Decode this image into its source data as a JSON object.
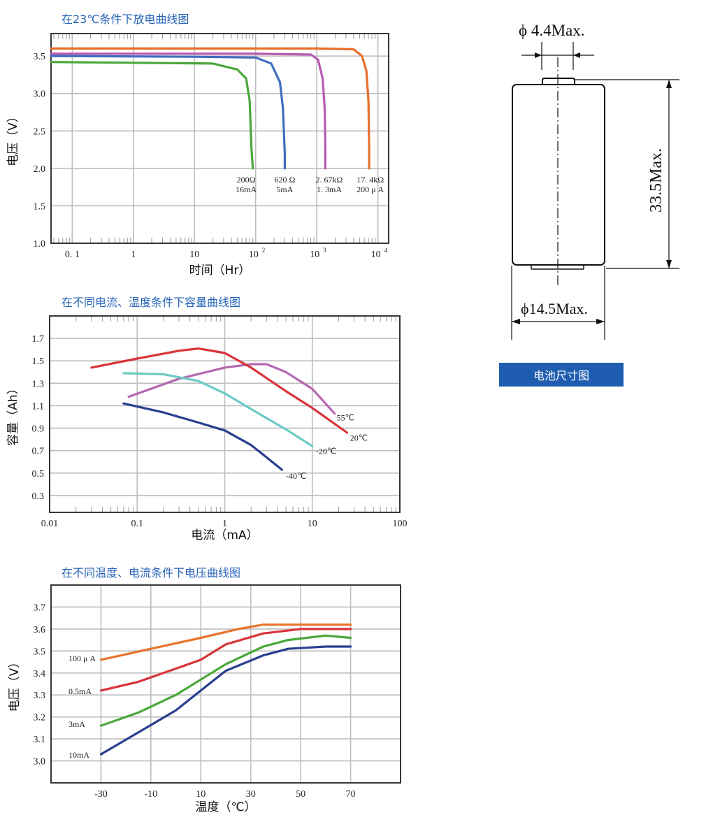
{
  "charts": {
    "c1": {
      "title": "在23℃条件下放电曲线图"
    },
    "c2": {
      "title": "在不同电流、温度条件下容量曲线图"
    },
    "c3": {
      "title": "在不同温度、电流条件下电压曲线图"
    }
  },
  "dimension": {
    "caption": "电池尺寸图",
    "d_top": "ϕ 4.4Max.",
    "height": "33.5Max.",
    "d_body": "ϕ14.5Max."
  },
  "chart_data": [
    {
      "type": "line",
      "title": "在23℃条件下放电曲线图",
      "xlabel": "时间（Hr）",
      "ylabel": "电压（V）",
      "xscale": "log",
      "xlim": [
        0.045,
        15000
      ],
      "ylim": [
        1.0,
        3.8
      ],
      "yticks": [
        "1.0",
        "1.5",
        "2.0",
        "2.5",
        "3.0",
        "3.5"
      ],
      "xticks": [
        {
          "label": "0. 1",
          "v": 0.1,
          "sup": ""
        },
        {
          "label": "1",
          "v": 1,
          "sup": ""
        },
        {
          "label": "10",
          "v": 10,
          "sup": ""
        },
        {
          "label": "10",
          "v": 100,
          "sup": "2"
        },
        {
          "label": "10",
          "v": 1000,
          "sup": "3"
        },
        {
          "label": "10",
          "v": 10000,
          "sup": "4"
        }
      ],
      "series": [
        {
          "label1": "200Ω",
          "label2": "16mA",
          "color": "#4aa83a",
          "labelX": 70,
          "x": [
            0.045,
            1,
            20,
            50,
            70,
            80,
            85,
            90,
            90
          ],
          "y": [
            3.42,
            3.41,
            3.4,
            3.32,
            3.2,
            2.9,
            2.3,
            2.0,
            2.0
          ]
        },
        {
          "label1": "620 Ω",
          "label2": "5mA",
          "color": "#3f6ebf",
          "labelX": 300,
          "x": [
            0.045,
            10,
            100,
            180,
            250,
            280,
            300,
            300
          ],
          "y": [
            3.5,
            3.49,
            3.48,
            3.4,
            3.15,
            2.8,
            2.2,
            2.0
          ]
        },
        {
          "label1": "2. 67kΩ",
          "label2": "1. 3mA",
          "color": "#b85ab0",
          "labelX": 1600,
          "x": [
            0.045,
            100,
            800,
            1050,
            1250,
            1350,
            1380,
            1380
          ],
          "y": [
            3.53,
            3.53,
            3.52,
            3.45,
            3.2,
            2.8,
            2.3,
            2.0
          ]
        },
        {
          "label1": "17. 4kΩ",
          "label2": "200 μ A",
          "color": "#e8702a",
          "labelX": 7500,
          "x": [
            0.045,
            1000,
            4000,
            5500,
            6500,
            7000,
            7200,
            7200
          ],
          "y": [
            3.6,
            3.6,
            3.59,
            3.5,
            3.3,
            2.9,
            2.3,
            2.0
          ]
        }
      ]
    },
    {
      "type": "line",
      "title": "在不同电流、温度条件下容量曲线图",
      "xlabel": "电流（mA）",
      "ylabel": "容量（Ah）",
      "xscale": "log",
      "xlim": [
        0.01,
        100
      ],
      "ylim": [
        0.15,
        1.9
      ],
      "yticks": [
        "0.3",
        "0.5",
        "0.7",
        "0.9",
        "1.1",
        "1.3",
        "1.5",
        "1.7"
      ],
      "xticks": [
        {
          "label": "0.01",
          "v": 0.01,
          "sup": ""
        },
        {
          "label": "0.1",
          "v": 0.1,
          "sup": ""
        },
        {
          "label": "1",
          "v": 1,
          "sup": ""
        },
        {
          "label": "10",
          "v": 10,
          "sup": ""
        },
        {
          "label": "100",
          "v": 100,
          "sup": ""
        }
      ],
      "series": [
        {
          "label1": "55℃",
          "label2": "",
          "color": "#b468b0",
          "lx": 19,
          "ly": 1.0,
          "x": [
            0.08,
            0.3,
            1,
            2,
            3,
            5,
            10,
            18
          ],
          "y": [
            1.18,
            1.34,
            1.44,
            1.47,
            1.47,
            1.4,
            1.25,
            1.03
          ]
        },
        {
          "label1": "20℃",
          "label2": "",
          "color": "#d9343a",
          "lx": 27,
          "ly": 0.82,
          "x": [
            0.03,
            0.1,
            0.3,
            0.5,
            1,
            2,
            5,
            10,
            25
          ],
          "y": [
            1.44,
            1.52,
            1.59,
            1.61,
            1.57,
            1.44,
            1.23,
            1.08,
            0.86
          ]
        },
        {
          "label1": "-20℃",
          "label2": "",
          "color": "#6ccac4",
          "lx": 11,
          "ly": 0.7,
          "x": [
            0.07,
            0.2,
            0.5,
            1,
            2,
            5,
            10
          ],
          "y": [
            1.39,
            1.38,
            1.32,
            1.21,
            1.07,
            0.89,
            0.74
          ]
        },
        {
          "label1": "-40℃",
          "label2": "",
          "color": "#2a3f8f",
          "lx": 5,
          "ly": 0.48,
          "x": [
            0.07,
            0.2,
            0.5,
            1,
            2,
            3,
            4.5
          ],
          "y": [
            1.12,
            1.04,
            0.95,
            0.88,
            0.75,
            0.64,
            0.53
          ]
        }
      ]
    },
    {
      "type": "line",
      "title": "在不同温度、电流条件下电压曲线图",
      "xlabel": "温度（℃）",
      "ylabel": "电压（V）",
      "xscale": "linear",
      "xlim": [
        -50,
        90
      ],
      "ylim": [
        2.9,
        3.8
      ],
      "yticks": [
        "3.0",
        "3.1",
        "3.2",
        "3.3",
        "3.4",
        "3.5",
        "3.6",
        "3.7"
      ],
      "xticks": [
        {
          "label": "-30",
          "v": -30,
          "sup": ""
        },
        {
          "label": "-10",
          "v": -10,
          "sup": ""
        },
        {
          "label": "10",
          "v": 10,
          "sup": ""
        },
        {
          "label": "30",
          "v": 30,
          "sup": ""
        },
        {
          "label": "50",
          "v": 50,
          "sup": ""
        },
        {
          "label": "70",
          "v": 70,
          "sup": ""
        }
      ],
      "series": [
        {
          "label1": "100 μ A",
          "label2": "",
          "color": "#e8742c",
          "lx": -43,
          "ly": 3.47,
          "x": [
            -30,
            -10,
            10,
            25,
            35,
            50,
            70
          ],
          "y": [
            3.46,
            3.51,
            3.56,
            3.6,
            3.62,
            3.62,
            3.62
          ]
        },
        {
          "label1": "0.5mA",
          "label2": "",
          "color": "#d9343a",
          "lx": -43,
          "ly": 3.32,
          "x": [
            -30,
            -15,
            0,
            10,
            20,
            35,
            50,
            70
          ],
          "y": [
            3.32,
            3.36,
            3.42,
            3.46,
            3.53,
            3.58,
            3.6,
            3.6
          ]
        },
        {
          "label1": "3mA",
          "label2": "",
          "color": "#4aa83a",
          "lx": -43,
          "ly": 3.17,
          "x": [
            -30,
            -15,
            0,
            10,
            20,
            35,
            45,
            60,
            70
          ],
          "y": [
            3.16,
            3.22,
            3.3,
            3.37,
            3.44,
            3.52,
            3.55,
            3.57,
            3.56
          ]
        },
        {
          "label1": "10mA",
          "label2": "",
          "color": "#2a3f8f",
          "lx": -43,
          "ly": 3.03,
          "x": [
            -30,
            -15,
            0,
            10,
            20,
            35,
            45,
            60,
            70
          ],
          "y": [
            3.03,
            3.13,
            3.23,
            3.32,
            3.41,
            3.48,
            3.51,
            3.52,
            3.52
          ]
        }
      ]
    }
  ]
}
